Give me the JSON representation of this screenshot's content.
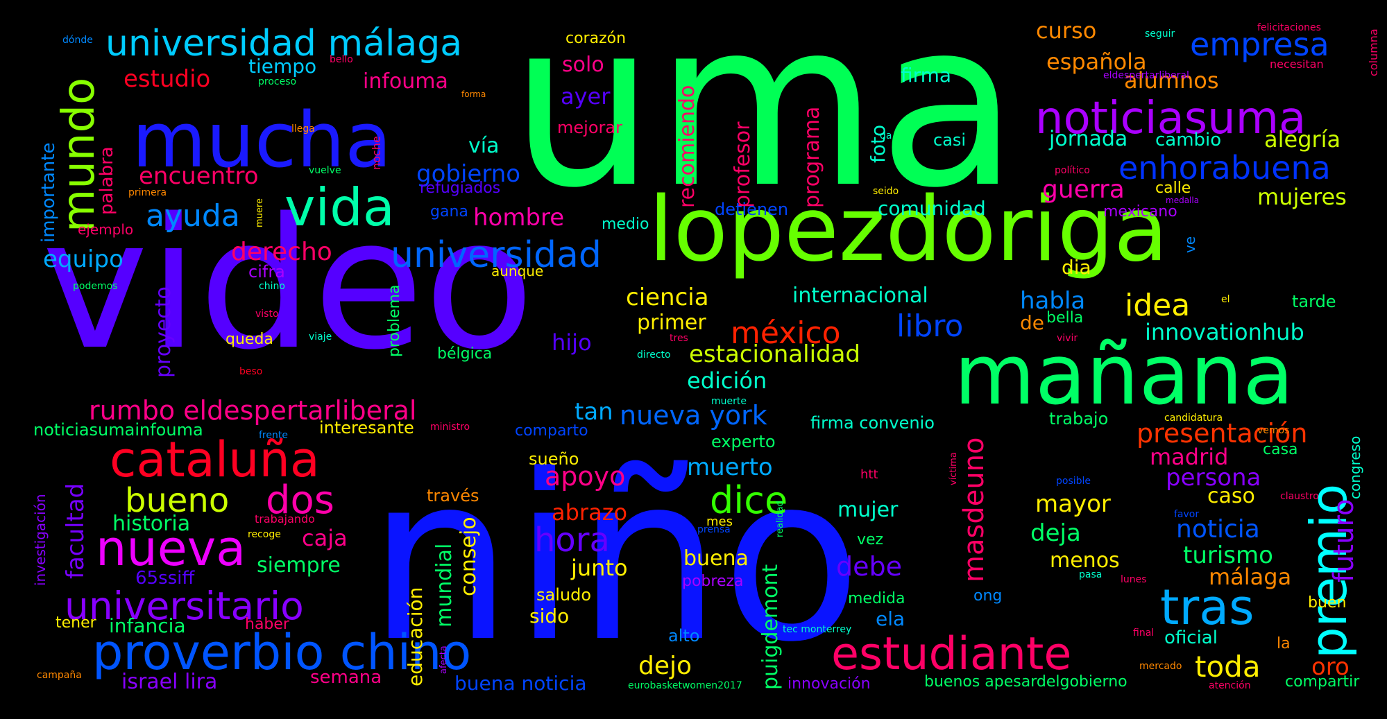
{
  "wordcloud": {
    "background": "#000000",
    "words": [
      {
        "text": "uma",
        "color": "#00ff55"
      },
      {
        "text": "video",
        "color": "#5500ff"
      },
      {
        "text": "niño",
        "color": "#0a14ff"
      },
      {
        "text": "lopezdoriga",
        "color": "#66ff00"
      },
      {
        "text": "mañana",
        "color": "#00ff66"
      },
      {
        "text": "mucha",
        "color": "#1a1aff"
      },
      {
        "text": "noticiasuma",
        "color": "#aa00ff"
      },
      {
        "text": "universidad málaga",
        "color": "#00ccff"
      },
      {
        "text": "proverbio chino",
        "color": "#0055ff"
      },
      {
        "text": "estudiante",
        "color": "#ff0066"
      },
      {
        "text": "cataluña",
        "color": "#ff0022"
      },
      {
        "text": "nueva",
        "color": "#ee00ff"
      },
      {
        "text": "vida",
        "color": "#00ffaa"
      },
      {
        "text": "premio",
        "color": "#00ffff"
      },
      {
        "text": "tras",
        "color": "#00aaff"
      },
      {
        "text": "mundo",
        "color": "#88ff00"
      },
      {
        "text": "universitario",
        "color": "#8800ff"
      },
      {
        "text": "universidad",
        "color": "#0066ff"
      },
      {
        "text": "empresa",
        "color": "#0044ff"
      },
      {
        "text": "enhorabuena",
        "color": "#0033ff"
      },
      {
        "text": "dice",
        "color": "#33ff00"
      },
      {
        "text": "dos",
        "color": "#ff00aa"
      },
      {
        "text": "bueno",
        "color": "#ccff00"
      },
      {
        "text": "hora",
        "color": "#6600ff"
      },
      {
        "text": "ayuda",
        "color": "#0088ff"
      },
      {
        "text": "presentación",
        "color": "#ff3300"
      },
      {
        "text": "masdeuno",
        "color": "#ff0066"
      },
      {
        "text": "futuro",
        "color": "#8800ff"
      },
      {
        "text": "toda",
        "color": "#ffee00"
      },
      {
        "text": "rumbo eldespertarliberal",
        "color": "#ff0088"
      },
      {
        "text": "méxico",
        "color": "#ff2200"
      },
      {
        "text": "libro",
        "color": "#0044ff"
      },
      {
        "text": "idea",
        "color": "#ffee00"
      },
      {
        "text": "nueva york",
        "color": "#0066ff"
      },
      {
        "text": "encuentro",
        "color": "#ff0066"
      },
      {
        "text": "derecho",
        "color": "#ff0066"
      },
      {
        "text": "equipo",
        "color": "#00aaff"
      },
      {
        "text": "estudio",
        "color": "#ff0022"
      },
      {
        "text": "facultad",
        "color": "#7700ff"
      },
      {
        "text": "gobierno",
        "color": "#0044ff"
      },
      {
        "text": "guerra",
        "color": "#ff00aa"
      },
      {
        "text": "española",
        "color": "#ff8800"
      },
      {
        "text": "curso",
        "color": "#ff8800"
      },
      {
        "text": "alumnos",
        "color": "#ff8800"
      },
      {
        "text": "jornada",
        "color": "#00ffcc"
      },
      {
        "text": "cambio",
        "color": "#00ffcc"
      },
      {
        "text": "alegría",
        "color": "#ccff00"
      },
      {
        "text": "mujeres",
        "color": "#ccff00"
      },
      {
        "text": "comunidad",
        "color": "#00ffcc"
      },
      {
        "text": "innovationhub",
        "color": "#00ffcc"
      },
      {
        "text": "estacionalidad",
        "color": "#ccff00"
      },
      {
        "text": "internacional",
        "color": "#00ffcc"
      },
      {
        "text": "habla",
        "color": "#0088ff"
      },
      {
        "text": "ciencia",
        "color": "#ffee00"
      },
      {
        "text": "primer",
        "color": "#ffee00"
      },
      {
        "text": "edición",
        "color": "#00ffcc"
      },
      {
        "text": "hijo",
        "color": "#5500ff"
      },
      {
        "text": "tan",
        "color": "#00aaff"
      },
      {
        "text": "apoyo",
        "color": "#ff0088"
      },
      {
        "text": "abrazo",
        "color": "#ff2200"
      },
      {
        "text": "muerto",
        "color": "#00aaff"
      },
      {
        "text": "mayor",
        "color": "#ffee00"
      },
      {
        "text": "deja",
        "color": "#00ff66"
      },
      {
        "text": "persona",
        "color": "#8800ff"
      },
      {
        "text": "madrid",
        "color": "#ff0088"
      },
      {
        "text": "noticia",
        "color": "#0055ff"
      },
      {
        "text": "turismo",
        "color": "#00ff66"
      },
      {
        "text": "málaga",
        "color": "#ff8800"
      },
      {
        "text": "caso",
        "color": "#ffee00"
      },
      {
        "text": "oro",
        "color": "#ff3300"
      },
      {
        "text": "dejo",
        "color": "#ffee00"
      },
      {
        "text": "buena",
        "color": "#ffee00"
      },
      {
        "text": "junto",
        "color": "#ffee00"
      },
      {
        "text": "debe",
        "color": "#6600ff"
      },
      {
        "text": "mujer",
        "color": "#00ffcc"
      },
      {
        "text": "menos",
        "color": "#ffee00"
      },
      {
        "text": "caja",
        "color": "#ff0088"
      },
      {
        "text": "historia",
        "color": "#00ff66"
      },
      {
        "text": "siempre",
        "color": "#00ff66"
      },
      {
        "text": "israel lira",
        "color": "#8800ff"
      },
      {
        "text": "infancia",
        "color": "#00ff66"
      },
      {
        "text": "semana",
        "color": "#ff0088"
      },
      {
        "text": "educación",
        "color": "#ffee00"
      },
      {
        "text": "mundial",
        "color": "#00ff66"
      },
      {
        "text": "consejo",
        "color": "#ffee00"
      },
      {
        "text": "buena noticia",
        "color": "#0044ff"
      },
      {
        "text": "puigdemont",
        "color": "#00ff66"
      },
      {
        "text": "proyecto",
        "color": "#6600ff"
      },
      {
        "text": "palabra",
        "color": "#ff0066"
      },
      {
        "text": "importante",
        "color": "#0088ff"
      },
      {
        "text": "tiempo",
        "color": "#00ccff"
      },
      {
        "text": "infouma",
        "color": "#ff0088"
      },
      {
        "text": "solo",
        "color": "#ff0088"
      },
      {
        "text": "ayer",
        "color": "#5500ff"
      },
      {
        "text": "vía",
        "color": "#00ffcc"
      },
      {
        "text": "hombre",
        "color": "#ff00aa"
      },
      {
        "text": "recomiendo",
        "color": "#ff0066"
      },
      {
        "text": "profesor",
        "color": "#ff0066"
      },
      {
        "text": "programa",
        "color": "#ff0066"
      },
      {
        "text": "foto",
        "color": "#00ffcc"
      },
      {
        "text": "firma",
        "color": "#00ffcc"
      },
      {
        "text": "corazón",
        "color": "#ffee00"
      },
      {
        "text": "mejorar",
        "color": "#ff0066"
      },
      {
        "text": "casi",
        "color": "#00ffcc"
      },
      {
        "text": "refugiados",
        "color": "#5500ff"
      },
      {
        "text": "gana",
        "color": "#0044ff"
      },
      {
        "text": "medio",
        "color": "#00ffcc"
      },
      {
        "text": "detienen",
        "color": "#0044ff"
      },
      {
        "text": "dia",
        "color": "#ffee00"
      },
      {
        "text": "de",
        "color": "#ff8800"
      },
      {
        "text": "bella",
        "color": "#00ff66"
      },
      {
        "text": "calle",
        "color": "#ffee00"
      },
      {
        "text": "mexicano",
        "color": "#aa00ff"
      },
      {
        "text": "noticiasumainfouma",
        "color": "#00ff66"
      },
      {
        "text": "65ssiff",
        "color": "#5500ff"
      },
      {
        "text": "interesante",
        "color": "#ffee00"
      },
      {
        "text": "firma convenio",
        "color": "#00ffcc"
      },
      {
        "text": "trabajo",
        "color": "#00ff66"
      },
      {
        "text": "experto",
        "color": "#00ff66"
      },
      {
        "text": "comparto",
        "color": "#0044ff"
      },
      {
        "text": "sueño",
        "color": "#ffee00"
      },
      {
        "text": "través",
        "color": "#ff8800"
      },
      {
        "text": "saludo",
        "color": "#ffee00"
      },
      {
        "text": "sido",
        "color": "#ffee00"
      },
      {
        "text": "alto",
        "color": "#0088ff"
      },
      {
        "text": "innovación",
        "color": "#8800ff"
      },
      {
        "text": "buenos apesardelgobierno",
        "color": "#00ff66"
      },
      {
        "text": "compartir",
        "color": "#00ff66"
      },
      {
        "text": "oficial",
        "color": "#00ffcc"
      },
      {
        "text": "tarde",
        "color": "#00ff66"
      },
      {
        "text": "buen",
        "color": "#ffee00"
      },
      {
        "text": "congreso",
        "color": "#00ffcc"
      },
      {
        "text": "casa",
        "color": "#00ff66"
      },
      {
        "text": "la",
        "color": "#ff8800"
      },
      {
        "text": "ela",
        "color": "#0088ff"
      },
      {
        "text": "ong",
        "color": "#0088ff"
      },
      {
        "text": "medida",
        "color": "#00ff66"
      },
      {
        "text": "pobreza",
        "color": "#aa00ff"
      },
      {
        "text": "vez",
        "color": "#00ff66"
      },
      {
        "text": "cifra",
        "color": "#aa00ff"
      },
      {
        "text": "problema",
        "color": "#00ff66"
      },
      {
        "text": "queda",
        "color": "#ffee00"
      },
      {
        "text": "bélgica",
        "color": "#00ff66"
      },
      {
        "text": "aunque",
        "color": "#ffee00"
      },
      {
        "text": "ejemplo",
        "color": "#ff0066"
      },
      {
        "text": "haber",
        "color": "#ff0066"
      },
      {
        "text": "tener",
        "color": "#ffee00"
      },
      {
        "text": "investigación",
        "color": "#8800ff"
      },
      {
        "text": "ve",
        "color": "#0088ff"
      },
      {
        "text": "columna",
        "color": "#ff0066"
      },
      {
        "text": "dónde",
        "color": "#0088ff"
      },
      {
        "text": "bello",
        "color": "#ff0066"
      },
      {
        "text": "proceso",
        "color": "#00ff66"
      },
      {
        "text": "llega",
        "color": "#ff8800"
      },
      {
        "text": "noche",
        "color": "#ff0066"
      },
      {
        "text": "vuelve",
        "color": "#00ff66"
      },
      {
        "text": "primera",
        "color": "#ff8800"
      },
      {
        "text": "muere",
        "color": "#ffee00"
      },
      {
        "text": "podemos",
        "color": "#00ff66"
      },
      {
        "text": "chino",
        "color": "#00ffcc"
      },
      {
        "text": "visto",
        "color": "#ff0066"
      },
      {
        "text": "viaje",
        "color": "#00ffcc"
      },
      {
        "text": "beso",
        "color": "#ff0022"
      },
      {
        "text": "forma",
        "color": "#ff8800"
      },
      {
        "text": "seguir",
        "color": "#00ffcc"
      },
      {
        "text": "felicitaciones",
        "color": "#ff0066"
      },
      {
        "text": "necesitan",
        "color": "#ff0066"
      },
      {
        "text": "eldespertarliberal",
        "color": "#aa00ff"
      },
      {
        "text": "da",
        "color": "#00ffcc"
      },
      {
        "text": "político",
        "color": "#ff0066"
      },
      {
        "text": "seido",
        "color": "#ffee00"
      },
      {
        "text": "medalla",
        "color": "#aa00ff"
      },
      {
        "text": "el",
        "color": "#ffee00"
      },
      {
        "text": "tres",
        "color": "#ff0066"
      },
      {
        "text": "vivir",
        "color": "#ff0066"
      },
      {
        "text": "directo",
        "color": "#00ffcc"
      },
      {
        "text": "muerte",
        "color": "#00ffcc"
      },
      {
        "text": "candidatura",
        "color": "#ffee00"
      },
      {
        "text": "ministro",
        "color": "#ff0066"
      },
      {
        "text": "vemos",
        "color": "#ff8800"
      },
      {
        "text": "frente",
        "color": "#0088ff"
      },
      {
        "text": "víctima",
        "color": "#ff0066"
      },
      {
        "text": "htt",
        "color": "#ff0066"
      },
      {
        "text": "posible",
        "color": "#0044ff"
      },
      {
        "text": "claustro",
        "color": "#ff0066"
      },
      {
        "text": "realidad",
        "color": "#00ff66"
      },
      {
        "text": "mes",
        "color": "#ffee00"
      },
      {
        "text": "prensa",
        "color": "#0044ff"
      },
      {
        "text": "favor",
        "color": "#0044ff"
      },
      {
        "text": "lunes",
        "color": "#ff0066"
      },
      {
        "text": "pasa",
        "color": "#00ffcc"
      },
      {
        "text": "trabajando",
        "color": "#ff0066"
      },
      {
        "text": "recoge",
        "color": "#ffee00"
      },
      {
        "text": "tec monterrey",
        "color": "#00ffcc"
      },
      {
        "text": "afecta",
        "color": "#aa00ff"
      },
      {
        "text": "final",
        "color": "#ff0066"
      },
      {
        "text": "mercado",
        "color": "#ff8800"
      },
      {
        "text": "atención",
        "color": "#ff0066"
      },
      {
        "text": "campaña",
        "color": "#ff8800"
      },
      {
        "text": "eurobasketwomen2017",
        "color": "#00ff66"
      }
    ]
  }
}
